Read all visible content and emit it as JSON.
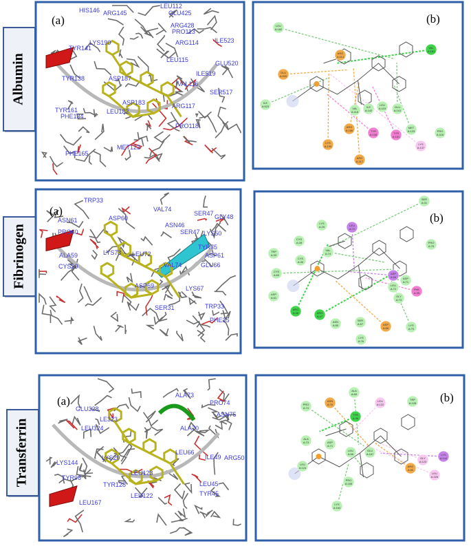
{
  "rows": [
    {
      "protein": "Albumin",
      "panel_a": {
        "label": "(a)",
        "residues": [
          "HIS146",
          "ARG145",
          "LEU112",
          "GLU425",
          "ARG428",
          "PRO113",
          "LYS190",
          "ARG114",
          "ILE523",
          "TYR141",
          "GLU520",
          "ILE519",
          "TYR138",
          "ASP187",
          "LEU115",
          "VAL116",
          "SER517",
          "ASP183",
          "ARG117",
          "LEU182",
          "TYR161",
          "PHE134",
          "PRO118",
          "MET123",
          "PHE165"
        ]
      },
      "panel_b": {
        "label": "(b)",
        "residues": [
          {
            "name": "LEU",
            "id": "A:182",
            "color": "#b9f0b4"
          },
          {
            "name": "VAL",
            "id": "A:161",
            "color": "#3fd34a"
          },
          {
            "name": "GLU",
            "id": "A:520",
            "color": "#f2aa48"
          },
          {
            "name": "ARG",
            "id": "A:114",
            "color": "#f2aa48"
          },
          {
            "name": "ILE",
            "id": "A:523",
            "color": "#b9f0b4"
          },
          {
            "name": "VAL",
            "id": "A:116",
            "color": "#b9f0b4"
          },
          {
            "name": "ILE",
            "id": "A:142",
            "color": "#b9f0b4"
          },
          {
            "name": "LEU",
            "id": "A:115",
            "color": "#b9f0b4"
          },
          {
            "name": "GLU",
            "id": "A:141",
            "color": "#b9f0b4"
          },
          {
            "name": "ARG",
            "id": "A:186",
            "color": "#f2aa48"
          },
          {
            "name": "TYR",
            "id": "A:138",
            "color": "#f27ed2"
          },
          {
            "name": "TYR",
            "id": "A:161",
            "color": "#f27ed2"
          },
          {
            "name": "MET",
            "id": "A:123",
            "color": "#b9f0b4"
          },
          {
            "name": "PRO",
            "id": "A:118",
            "color": "#b9f0b4"
          },
          {
            "name": "LYS",
            "id": "A:190",
            "color": "#f2aa48"
          },
          {
            "name": "ARG",
            "id": "A:117",
            "color": "#f2aa48"
          },
          {
            "name": "LYS",
            "id": "A:137",
            "color": "#f8c8f0"
          }
        ]
      }
    },
    {
      "protein": "Fibrinogen",
      "panel_a": {
        "label": "(a)",
        "residues": [
          "TRP33",
          "VAL74",
          "SER47",
          "GLY48",
          "ASN61",
          "ASP60",
          "ASN46",
          "PRO60",
          "LYS50",
          "ALA59",
          "CYS30",
          "LYS73",
          "LEU72",
          "TYR75",
          "ASP61",
          "GLU66",
          "VAL74",
          "ASP69",
          "LYS67",
          "SER31",
          "TRP33",
          "PHE35",
          "SER47"
        ]
      },
      "panel_b": {
        "label": "(b)",
        "residues": [
          {
            "name": "SER",
            "id": "A:31",
            "color": "#b9f0b4"
          },
          {
            "name": "LYS",
            "id": "A:29",
            "color": "#b9f0b4"
          },
          {
            "name": "LEU",
            "id": "A:72",
            "color": "#c583ea"
          },
          {
            "name": "CYS",
            "id": "A:28",
            "color": "#b9f0b4"
          },
          {
            "name": "VAL",
            "id": "A:74",
            "color": "#b9f0b4"
          },
          {
            "name": "PRO",
            "id": "A:75",
            "color": "#b9f0b4"
          },
          {
            "name": "TRP",
            "id": "A:33",
            "color": "#b9f0b4"
          },
          {
            "name": "CYS",
            "id": "A:30",
            "color": "#b9f0b4"
          },
          {
            "name": "CYS",
            "id": "A:69",
            "color": "#b9f0b4"
          },
          {
            "name": "LEU",
            "id": "A:72",
            "color": "#b9f0b4"
          },
          {
            "name": "ASP",
            "id": "A:61",
            "color": "#b9f0b4"
          },
          {
            "name": "ASP",
            "id": "A:59",
            "color": "#c583ea"
          },
          {
            "name": "ASP",
            "id": "A:71",
            "color": "#b9f0b4"
          },
          {
            "name": "GLY",
            "id": "A:73",
            "color": "#b9f0b4"
          },
          {
            "name": "PHE",
            "id": "A:35",
            "color": "#f27ed2"
          },
          {
            "name": "ARG",
            "id": "A:48",
            "color": "#3fd34a"
          },
          {
            "name": "ARG",
            "id": "A:47",
            "color": "#3fd34a"
          },
          {
            "name": "ASN",
            "id": "A:50",
            "color": "#b9f0b4"
          },
          {
            "name": "SER",
            "id": "A:67",
            "color": "#b9f0b4"
          },
          {
            "name": "ASP",
            "id": "A:66",
            "color": "#f2aa48"
          },
          {
            "name": "LYS",
            "id": "A:70",
            "color": "#b9f0b4"
          },
          {
            "name": "LYS",
            "id": "A:76",
            "color": "#b9f0b4"
          }
        ]
      }
    },
    {
      "protein": "Transferrin",
      "panel_a": {
        "label": "(a)",
        "residues": [
          "ALA73",
          "PRO74",
          "GLU328",
          "LE323",
          "ASN75",
          "LEU324",
          "ALA70",
          "LEU66",
          "LYS144",
          "ILE49",
          "ARG50",
          "LYS29",
          "LEU123",
          "TYR96",
          "TYR128",
          "LEU122",
          "LEU45",
          "TYR45",
          "LEU167"
        ]
      },
      "panel_b": {
        "label": "(b)",
        "residues": [
          {
            "name": "ALA",
            "id": "A:69",
            "color": "#b9f0b4"
          },
          {
            "name": "ASN",
            "id": "A:70",
            "color": "#f2aa48"
          },
          {
            "name": "LEU",
            "id": "A:122",
            "color": "#f8c8f0"
          },
          {
            "name": "TRP",
            "id": "A:128",
            "color": "#b9f0b4"
          },
          {
            "name": "PRO",
            "id": "A:74",
            "color": "#b9f0b4"
          },
          {
            "name": "TYR",
            "id": "A:45",
            "color": "#3fd34a"
          },
          {
            "name": "ALA",
            "id": "A:73",
            "color": "#b9f0b4"
          },
          {
            "name": "ASP",
            "id": "A:71",
            "color": "#b9f0b4"
          },
          {
            "name": "LEU",
            "id": "A:66",
            "color": "#b9f0b4"
          },
          {
            "name": "GLU",
            "id": "A:167",
            "color": "#b9f0b4"
          },
          {
            "name": "LYS",
            "id": "A:144",
            "color": "#c583ea"
          },
          {
            "name": "GLY",
            "id": "A:123",
            "color": "#f8c8f0"
          },
          {
            "name": "ARG",
            "id": "A:50",
            "color": "#f2aa48"
          },
          {
            "name": "LEU",
            "id": "A:124",
            "color": "#b9f0b4"
          },
          {
            "name": "LEU",
            "id": "A:326",
            "color": "#f8c8f0"
          },
          {
            "name": "PRO",
            "id": "A:165",
            "color": "#b9f0b4"
          },
          {
            "name": "LYS",
            "id": "A:164",
            "color": "#b9f0b4"
          }
        ]
      }
    }
  ]
}
